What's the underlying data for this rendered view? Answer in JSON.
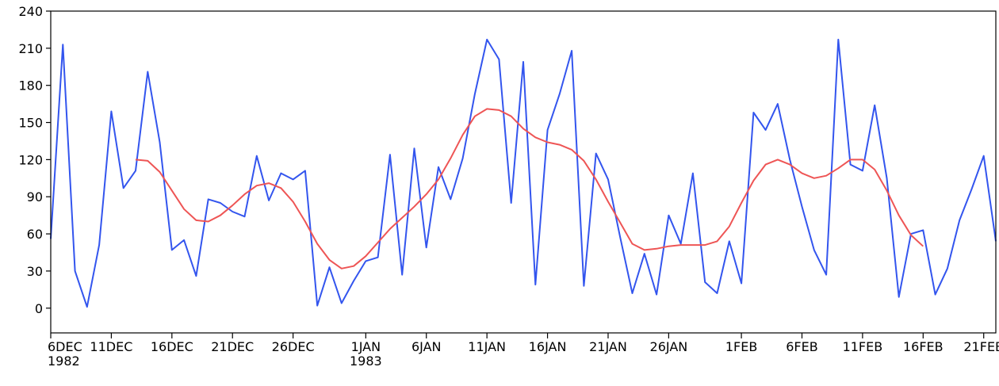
{
  "chart_data": {
    "type": "line",
    "title": "",
    "xlabel": "",
    "ylabel": "",
    "x_range": [
      "1982-12-06",
      "1983-02-22"
    ],
    "ylim": [
      -20,
      240
    ],
    "y_ticks": [
      0,
      30,
      60,
      90,
      120,
      150,
      180,
      210,
      240
    ],
    "x_ticks": [
      {
        "date": "1982-12-06",
        "label": "6DEC",
        "sublabel": "1982"
      },
      {
        "date": "1982-12-11",
        "label": "11DEC",
        "sublabel": ""
      },
      {
        "date": "1982-12-16",
        "label": "16DEC",
        "sublabel": ""
      },
      {
        "date": "1982-12-21",
        "label": "21DEC",
        "sublabel": ""
      },
      {
        "date": "1982-12-26",
        "label": "26DEC",
        "sublabel": ""
      },
      {
        "date": "1983-01-01",
        "label": "1JAN",
        "sublabel": "1983"
      },
      {
        "date": "1983-01-06",
        "label": "6JAN",
        "sublabel": ""
      },
      {
        "date": "1983-01-11",
        "label": "11JAN",
        "sublabel": ""
      },
      {
        "date": "1983-01-16",
        "label": "16JAN",
        "sublabel": ""
      },
      {
        "date": "1983-01-21",
        "label": "21JAN",
        "sublabel": ""
      },
      {
        "date": "1983-01-26",
        "label": "26JAN",
        "sublabel": ""
      },
      {
        "date": "1983-02-01",
        "label": "1FEB",
        "sublabel": ""
      },
      {
        "date": "1983-02-06",
        "label": "6FEB",
        "sublabel": ""
      },
      {
        "date": "1983-02-11",
        "label": "11FEB",
        "sublabel": ""
      },
      {
        "date": "1983-02-16",
        "label": "16FEB",
        "sublabel": ""
      },
      {
        "date": "1983-02-21",
        "label": "21FEB",
        "sublabel": ""
      }
    ],
    "grid": false,
    "legend": "none",
    "series": [
      {
        "color": "#3355ee",
        "x": [
          "1982-12-06",
          "1982-12-07",
          "1982-12-08",
          "1982-12-09",
          "1982-12-10",
          "1982-12-11",
          "1982-12-12",
          "1982-12-13",
          "1982-12-14",
          "1982-12-15",
          "1982-12-16",
          "1982-12-17",
          "1982-12-18",
          "1982-12-19",
          "1982-12-20",
          "1982-12-21",
          "1982-12-22",
          "1982-12-23",
          "1982-12-24",
          "1982-12-25",
          "1982-12-26",
          "1982-12-27",
          "1982-12-28",
          "1982-12-29",
          "1982-12-30",
          "1982-12-31",
          "1983-01-01",
          "1983-01-02",
          "1983-01-03",
          "1983-01-04",
          "1983-01-05",
          "1983-01-06",
          "1983-01-07",
          "1983-01-08",
          "1983-01-09",
          "1983-01-10",
          "1983-01-11",
          "1983-01-12",
          "1983-01-13",
          "1983-01-14",
          "1983-01-15",
          "1983-01-16",
          "1983-01-17",
          "1983-01-18",
          "1983-01-19",
          "1983-01-20",
          "1983-01-21",
          "1983-01-22",
          "1983-01-23",
          "1983-01-24",
          "1983-01-25",
          "1983-01-26",
          "1983-01-27",
          "1983-01-28",
          "1983-01-29",
          "1983-01-30",
          "1983-01-31",
          "1983-02-01",
          "1983-02-02",
          "1983-02-03",
          "1983-02-04",
          "1983-02-05",
          "1983-02-06",
          "1983-02-07",
          "1983-02-08",
          "1983-02-09",
          "1983-02-10",
          "1983-02-11",
          "1983-02-12",
          "1983-02-13",
          "1983-02-14",
          "1983-02-15",
          "1983-02-16",
          "1983-02-17",
          "1983-02-18",
          "1983-02-19",
          "1983-02-20",
          "1983-02-21",
          "1983-02-22"
        ],
        "values": [
          56,
          213,
          30,
          1,
          51,
          159,
          97,
          111,
          191,
          134,
          47,
          55,
          26,
          88,
          85,
          78,
          74,
          123,
          87,
          109,
          104,
          111,
          2,
          33,
          4,
          22,
          38,
          41,
          124,
          27,
          129,
          49,
          114,
          88,
          121,
          173,
          217,
          201,
          85,
          199,
          19,
          144,
          173,
          208,
          18,
          125,
          104,
          57,
          12,
          44,
          11,
          75,
          52,
          109,
          21,
          12,
          54,
          20,
          158,
          144,
          165,
          120,
          82,
          47,
          27,
          217,
          116,
          111,
          164,
          105,
          9,
          60,
          63,
          11,
          32,
          71,
          96,
          123,
          54
        ]
      },
      {
        "color": "#ee5555",
        "x": [
          "1982-12-13",
          "1982-12-14",
          "1982-12-15",
          "1982-12-16",
          "1982-12-17",
          "1982-12-18",
          "1982-12-19",
          "1982-12-20",
          "1982-12-21",
          "1982-12-22",
          "1982-12-23",
          "1982-12-24",
          "1982-12-25",
          "1982-12-26",
          "1982-12-27",
          "1982-12-28",
          "1982-12-29",
          "1982-12-30",
          "1982-12-31",
          "1983-01-01",
          "1983-01-02",
          "1983-01-03",
          "1983-01-04",
          "1983-01-05",
          "1983-01-06",
          "1983-01-07",
          "1983-01-08",
          "1983-01-09",
          "1983-01-10",
          "1983-01-11",
          "1983-01-12",
          "1983-01-13",
          "1983-01-14",
          "1983-01-15",
          "1983-01-16",
          "1983-01-17",
          "1983-01-18",
          "1983-01-19",
          "1983-01-20",
          "1983-01-21",
          "1983-01-22",
          "1983-01-23",
          "1983-01-24",
          "1983-01-25",
          "1983-01-26",
          "1983-01-27",
          "1983-01-28",
          "1983-01-29",
          "1983-01-30",
          "1983-01-31",
          "1983-02-01",
          "1983-02-02",
          "1983-02-03",
          "1983-02-04",
          "1983-02-05",
          "1983-02-06",
          "1983-02-07",
          "1983-02-08",
          "1983-02-09",
          "1983-02-10",
          "1983-02-11",
          "1983-02-12",
          "1983-02-13",
          "1983-02-14",
          "1983-02-15",
          "1983-02-16"
        ],
        "values": [
          120,
          119,
          110,
          95,
          80,
          71,
          70,
          75,
          83,
          92,
          99,
          101,
          97,
          86,
          70,
          52,
          39,
          32,
          34,
          42,
          53,
          64,
          73,
          82,
          92,
          104,
          121,
          140,
          155,
          161,
          160,
          155,
          145,
          138,
          134,
          132,
          128,
          119,
          104,
          86,
          69,
          52,
          47,
          48,
          50,
          51,
          51,
          51,
          54,
          66,
          85,
          103,
          116,
          120,
          116,
          109,
          105,
          107,
          113,
          120,
          120,
          112,
          95,
          75,
          59,
          50
        ]
      }
    ]
  }
}
